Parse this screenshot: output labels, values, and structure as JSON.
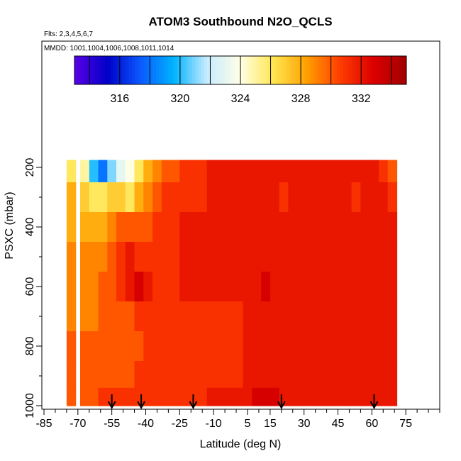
{
  "chart_data": {
    "type": "heatmap",
    "title": "ATOM3 Southbound N2O_QCLS",
    "subtitle_flights": "Flts: 2,3,4,5,6,7",
    "subtitle_dates": "MMDD: 1001,1004,1006,1008,1011,1014",
    "xlabel": "Latitude (deg N)",
    "ylabel": "PSXC (mbar)",
    "xlim": [
      -85,
      90
    ],
    "ylim": [
      1000,
      130
    ],
    "x_ticks": [
      "-85",
      "-70",
      "-55",
      "-40",
      "-25",
      "-10",
      "5",
      "15",
      "30",
      "45",
      "60",
      "75"
    ],
    "x_tick_values": [
      -85,
      -70,
      -55,
      -40,
      -25,
      -10,
      5,
      15,
      30,
      45,
      60,
      75
    ],
    "y_ticks": [
      "200",
      "400",
      "600",
      "800",
      "1000"
    ],
    "y_tick_values": [
      200,
      400,
      600,
      800,
      1000
    ],
    "colorbar": {
      "range": [
        313,
        335
      ],
      "ticks": [
        "316",
        "320",
        "324",
        "328",
        "332"
      ],
      "tick_values": [
        316,
        320,
        324,
        328,
        332
      ],
      "colors": [
        "#5a00e6",
        "#0000c8",
        "#0a5aff",
        "#00b4ff",
        "#c8ebff",
        "#ffffe6",
        "#ffe650",
        "#ffa000",
        "#ff3c00",
        "#dc0000",
        "#a00000"
      ]
    },
    "latitude_columns": [
      -73,
      -67,
      -63,
      -59,
      -55,
      -51,
      -47,
      -43,
      -39,
      -35,
      -31,
      -27,
      -23,
      -19,
      -15,
      -11,
      -7,
      -3,
      1,
      5,
      9,
      13,
      17,
      21,
      25,
      29,
      33,
      37,
      41,
      45,
      49,
      53,
      57,
      61,
      65,
      69
    ],
    "pressure_levels": [
      200,
      300,
      400,
      500,
      600,
      700,
      800,
      900,
      980
    ],
    "n2o_grid": [
      [
        326,
        325,
        320,
        318,
        321,
        323,
        324,
        326,
        328,
        329,
        330,
        330,
        331,
        331,
        331,
        332,
        332,
        332,
        332,
        332,
        332,
        332,
        332,
        332,
        332,
        332,
        332,
        332,
        332,
        332,
        332,
        332,
        332,
        332,
        331,
        330
      ],
      [
        328,
        327,
        326,
        326,
        327,
        327,
        326,
        328,
        329,
        330,
        331,
        331,
        331,
        331,
        331,
        332,
        332,
        332,
        332,
        332,
        332,
        332,
        332,
        331,
        332,
        332,
        332,
        332,
        332,
        332,
        332,
        331,
        332,
        332,
        332,
        331
      ],
      [
        328,
        328,
        328,
        328,
        329,
        330,
        330,
        330,
        330,
        331,
        331,
        331,
        332,
        332,
        332,
        332,
        332,
        332,
        332,
        332,
        332,
        332,
        332,
        332,
        332,
        332,
        332,
        332,
        332,
        332,
        332,
        332,
        332,
        332,
        332,
        332
      ],
      [
        329,
        329,
        329,
        329,
        330,
        331,
        332,
        331,
        331,
        331,
        331,
        331,
        332,
        332,
        332,
        332,
        332,
        332,
        332,
        332,
        332,
        332,
        332,
        332,
        332,
        332,
        332,
        332,
        332,
        332,
        332,
        332,
        332,
        332,
        332,
        332
      ],
      [
        329,
        329,
        329,
        330,
        330,
        331,
        332,
        333,
        332,
        331,
        331,
        331,
        332,
        332,
        332,
        332,
        332,
        332,
        332,
        332,
        332,
        333,
        332,
        332,
        332,
        332,
        332,
        332,
        332,
        332,
        332,
        332,
        332,
        332,
        332,
        332
      ],
      [
        329,
        329,
        329,
        330,
        330,
        330,
        330,
        331,
        331,
        331,
        331,
        331,
        331,
        331,
        331,
        331,
        331,
        331,
        331,
        332,
        332,
        332,
        332,
        332,
        332,
        332,
        332,
        332,
        332,
        332,
        332,
        332,
        332,
        332,
        332,
        332
      ],
      [
        330,
        330,
        330,
        330,
        330,
        330,
        330,
        330,
        331,
        331,
        331,
        331,
        331,
        331,
        331,
        331,
        331,
        331,
        331,
        332,
        332,
        332,
        332,
        332,
        332,
        332,
        332,
        332,
        332,
        332,
        332,
        332,
        332,
        332,
        332,
        332
      ],
      [
        330,
        330,
        330,
        330,
        330,
        330,
        330,
        331,
        331,
        331,
        331,
        331,
        331,
        331,
        331,
        331,
        331,
        331,
        331,
        332,
        332,
        332,
        332,
        332,
        332,
        332,
        332,
        332,
        332,
        332,
        332,
        332,
        332,
        332,
        332,
        332
      ],
      [
        330,
        330,
        330,
        331,
        331,
        331,
        331,
        331,
        331,
        331,
        331,
        331,
        331,
        331,
        331,
        332,
        332,
        332,
        332,
        332,
        333,
        333,
        333,
        332,
        332,
        332,
        332,
        332,
        332,
        332,
        332,
        332,
        332,
        332,
        332,
        332
      ]
    ],
    "aircraft_profile_latitudes": [
      -55,
      -42,
      -19,
      20,
      61
    ]
  }
}
